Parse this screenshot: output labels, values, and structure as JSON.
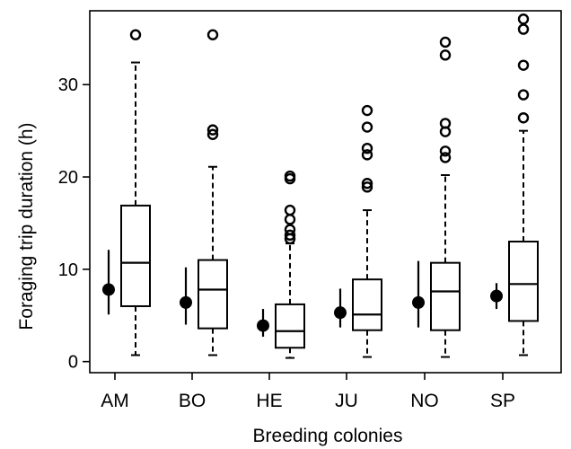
{
  "chart_data": {
    "type": "box",
    "title": "",
    "xlabel": "Breeding colonies",
    "ylabel": "Foraging trip duration (h)",
    "ylim": [
      -1.2,
      38
    ],
    "yticks": [
      0,
      10,
      20,
      30
    ],
    "grid": false,
    "categories": [
      "AM",
      "BO",
      "HE",
      "JU",
      "NO",
      "SP"
    ],
    "boxes": [
      {
        "category": "AM",
        "whisker_low": 0.7,
        "q1": 6.0,
        "median": 10.7,
        "q3": 16.9,
        "whisker_high": 32.4,
        "outliers": [
          35.4
        ]
      },
      {
        "category": "BO",
        "whisker_low": 0.7,
        "q1": 3.6,
        "median": 7.8,
        "q3": 11.0,
        "whisker_high": 21.1,
        "outliers": [
          24.6,
          25.1,
          35.4
        ]
      },
      {
        "category": "HE",
        "whisker_low": 0.4,
        "q1": 1.5,
        "median": 3.3,
        "q3": 6.2,
        "whisker_high": 12.8,
        "outliers": [
          13.3,
          13.7,
          14.3,
          15.4,
          16.4,
          19.8,
          20.1
        ]
      },
      {
        "category": "JU",
        "whisker_low": 0.5,
        "q1": 3.4,
        "median": 5.1,
        "q3": 8.9,
        "whisker_high": 16.4,
        "outliers": [
          18.9,
          19.3,
          22.4,
          23.1,
          25.4,
          27.2
        ]
      },
      {
        "category": "NO",
        "whisker_low": 0.5,
        "q1": 3.4,
        "median": 7.6,
        "q3": 10.7,
        "whisker_high": 20.2,
        "outliers": [
          22.1,
          22.8,
          24.9,
          25.8,
          33.2,
          34.6
        ]
      },
      {
        "category": "SP",
        "whisker_low": 0.7,
        "q1": 4.4,
        "median": 8.4,
        "q3": 13.0,
        "whisker_high": 25.0,
        "outliers": [
          26.4,
          28.9,
          32.1,
          36.0,
          37.1
        ]
      }
    ],
    "point_estimates": [
      {
        "category": "AM",
        "value": 7.8,
        "low": 5.1,
        "high": 12.1
      },
      {
        "category": "BO",
        "value": 6.4,
        "low": 4.0,
        "high": 10.2
      },
      {
        "category": "HE",
        "value": 3.9,
        "low": 2.7,
        "high": 5.7
      },
      {
        "category": "JU",
        "value": 5.3,
        "low": 3.7,
        "high": 7.9
      },
      {
        "category": "NO",
        "value": 6.4,
        "low": 3.7,
        "high": 10.9
      },
      {
        "category": "SP",
        "value": 7.1,
        "low": 5.7,
        "high": 8.5
      }
    ]
  }
}
